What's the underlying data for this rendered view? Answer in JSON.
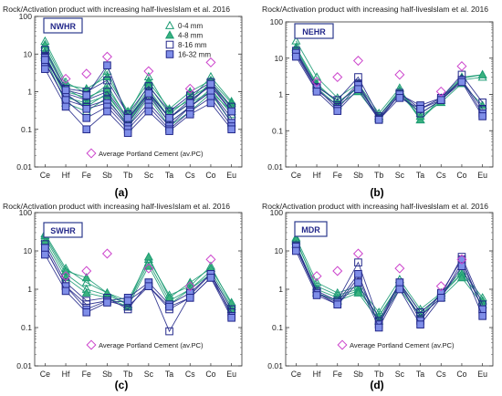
{
  "figure": {
    "panels": [
      {
        "id": "a",
        "caption": "(a)"
      },
      {
        "id": "b",
        "caption": "(b)"
      },
      {
        "id": "c",
        "caption": "(c)"
      },
      {
        "id": "d",
        "caption": "(d)"
      }
    ]
  },
  "colors": {
    "green": "#1a9a72",
    "navy": "#23288a",
    "blue_fill": "#7f8ee8",
    "green_fill": "#3bb27f",
    "pc_pink": "#cc44cc",
    "tag_border": "#2d3b8e",
    "caption": "#000000"
  },
  "chart_data": [
    {
      "panel": "a",
      "type": "line",
      "title": "Rock/Activation product with increasing half-lives",
      "source": "Islam et al. 2016",
      "tag": "NWHR",
      "categories": [
        "Ce",
        "Hf",
        "Fe",
        "Sb",
        "Tb",
        "Sc",
        "Ta",
        "Cs",
        "Co",
        "Eu"
      ],
      "yscale": "log",
      "ylim": [
        0.01,
        100
      ],
      "yticks": [
        "0.01",
        "0.1",
        "1",
        "10",
        "100"
      ],
      "legend": {
        "placement": "top-right",
        "entries": [
          {
            "label": "0-4 mm",
            "marker": "triangle-open"
          },
          {
            "label": "4-8 mm",
            "marker": "triangle-filled"
          },
          {
            "label": "8-16 mm",
            "marker": "square-open"
          },
          {
            "label": "16-32 mm",
            "marker": "square-filled"
          }
        ]
      },
      "pc_label": "Average Portland Cement (av.PC)",
      "pc_values": [
        null,
        2.2,
        3,
        8.5,
        null,
        3.5,
        null,
        1.2,
        6,
        null
      ],
      "series": [
        {
          "group": "0-4",
          "values": [
            22,
            1.8,
            0.9,
            3.5,
            0.25,
            2.5,
            0.3,
            0.6,
            2.5,
            0.55
          ]
        },
        {
          "group": "0-4",
          "values": [
            15,
            1.2,
            0.6,
            1.5,
            0.18,
            1.2,
            0.2,
            0.5,
            1.8,
            0.35
          ]
        },
        {
          "group": "0-4",
          "values": [
            10,
            0.8,
            0.4,
            0.9,
            0.15,
            0.9,
            0.15,
            0.4,
            1.2,
            0.25
          ]
        },
        {
          "group": "0-4",
          "values": [
            8,
            0.5,
            0.3,
            0.7,
            0.12,
            0.7,
            0.12,
            0.3,
            0.9,
            0.15
          ]
        },
        {
          "group": "4-8",
          "values": [
            18,
            1.5,
            1.2,
            2.5,
            0.3,
            1.8,
            0.35,
            1,
            2,
            0.5
          ]
        },
        {
          "group": "4-8",
          "values": [
            12,
            1,
            0.7,
            1.2,
            0.2,
            1.5,
            0.25,
            0.7,
            1.5,
            0.4
          ]
        },
        {
          "group": "4-8",
          "values": [
            9,
            0.7,
            0.5,
            0.8,
            0.16,
            1,
            0.2,
            0.5,
            1,
            0.3
          ]
        },
        {
          "group": "8-16",
          "values": [
            13,
            1.2,
            1,
            2,
            0.25,
            1.4,
            0.3,
            0.8,
            1.8,
            0.4
          ]
        },
        {
          "group": "8-16",
          "values": [
            9,
            0.9,
            0.6,
            1,
            0.18,
            1,
            0.2,
            0.6,
            1.4,
            0.3
          ]
        },
        {
          "group": "8-16",
          "values": [
            6,
            0.6,
            0.4,
            0.6,
            0.14,
            0.8,
            0.15,
            0.4,
            1,
            0.2
          ]
        },
        {
          "group": "16-32",
          "values": [
            8,
            0.9,
            0.35,
            0.5,
            0.12,
            0.5,
            0.12,
            0.4,
            1,
            0.15
          ]
        },
        {
          "group": "16-32",
          "values": [
            6,
            0.6,
            0.2,
            0.4,
            0.1,
            0.4,
            0.1,
            0.3,
            0.7,
            0.12
          ]
        },
        {
          "group": "16-32",
          "values": [
            4,
            0.4,
            0.1,
            0.3,
            0.08,
            0.3,
            0.09,
            0.25,
            0.5,
            0.1
          ]
        },
        {
          "group": "16-32",
          "values": [
            7,
            1.1,
            0.8,
            5,
            0.2,
            0.9,
            0.2,
            0.5,
            1.6,
            0.3
          ]
        }
      ]
    },
    {
      "panel": "b",
      "type": "line",
      "title": "Rock/Activation product with increasing half-lives",
      "source": "Islam et al. 2016",
      "tag": "NEHR",
      "categories": [
        "Ce",
        "Hf",
        "Fe",
        "Sb",
        "Tb",
        "Sc",
        "Ta",
        "Cs",
        "Co",
        "Eu"
      ],
      "yscale": "log",
      "ylim": [
        0.01,
        100
      ],
      "yticks": [
        "0.01",
        "0.1",
        "1",
        "10",
        "100"
      ],
      "pc_values": [
        null,
        2.2,
        3,
        8.5,
        null,
        3.5,
        null,
        1.2,
        6,
        null
      ],
      "series": [
        {
          "group": "0-4",
          "values": [
            30,
            3,
            0.8,
            2,
            0.3,
            1.5,
            0.2,
            0.8,
            3,
            3.5
          ]
        },
        {
          "group": "0-4",
          "values": [
            20,
            2,
            0.6,
            1.6,
            0.25,
            1.2,
            0.3,
            0.7,
            2.5,
            3
          ]
        },
        {
          "group": "4-8",
          "values": [
            18,
            1.8,
            0.6,
            1.5,
            0.25,
            1.3,
            0.2,
            0.7,
            2.8,
            3.5
          ]
        },
        {
          "group": "4-8",
          "values": [
            15,
            1.5,
            0.5,
            1.2,
            0.22,
            1,
            0.25,
            0.6,
            2,
            0.5
          ]
        },
        {
          "group": "8-16",
          "values": [
            16,
            1.6,
            0.7,
            3,
            0.25,
            1.1,
            0.4,
            0.8,
            3.5,
            0.6
          ]
        },
        {
          "group": "8-16",
          "values": [
            13,
            1.3,
            0.5,
            2,
            0.22,
            1,
            0.3,
            0.7,
            2.5,
            0.4
          ]
        },
        {
          "group": "16-32",
          "values": [
            14,
            1.5,
            0.4,
            1.8,
            0.2,
            1,
            0.5,
            0.8,
            2.5,
            0.3
          ]
        },
        {
          "group": "16-32",
          "values": [
            11,
            1.2,
            0.35,
            1.4,
            0.2,
            0.8,
            0.4,
            0.7,
            2.2,
            0.25
          ]
        }
      ]
    },
    {
      "panel": "c",
      "type": "line",
      "title": "Rock/Activation product with increasing half-lives",
      "source": "Islam et al. 2016",
      "tag": "SWHR",
      "categories": [
        "Ce",
        "Hf",
        "Fe",
        "Sb",
        "Tb",
        "Sc",
        "Ta",
        "Cs",
        "Co",
        "Eu"
      ],
      "yscale": "log",
      "ylim": [
        0.01,
        100
      ],
      "yticks": [
        "0.01",
        "0.1",
        "1",
        "10",
        "100"
      ],
      "pc_label": "Average Portland Cement (av.PC)",
      "pc_values": [
        null,
        2.2,
        3,
        8.5,
        null,
        3.5,
        null,
        1.2,
        6,
        null
      ],
      "series": [
        {
          "group": "0-4",
          "values": [
            28,
            3.5,
            1.5,
            0.8,
            0.5,
            6,
            0.7,
            1.2,
            4,
            0.4
          ]
        },
        {
          "group": "0-4",
          "values": [
            22,
            2.5,
            1,
            0.7,
            0.4,
            5,
            0.5,
            1,
            3,
            0.35
          ]
        },
        {
          "group": "4-8",
          "values": [
            25,
            3,
            2,
            0.8,
            0.4,
            7,
            0.6,
            1.5,
            3.5,
            0.45
          ]
        },
        {
          "group": "4-8",
          "values": [
            18,
            2,
            0.8,
            0.6,
            0.35,
            4,
            0.4,
            1,
            2.5,
            0.3
          ]
        },
        {
          "group": "8-16",
          "values": [
            15,
            1.5,
            0.5,
            0.6,
            0.3,
            1.5,
            0.08,
            0.7,
            2.5,
            0.3
          ]
        },
        {
          "group": "8-16",
          "values": [
            12,
            1.2,
            0.4,
            0.5,
            0.35,
            1.2,
            0.3,
            0.6,
            2,
            0.25
          ]
        },
        {
          "group": "16-32",
          "values": [
            12,
            1.2,
            0.3,
            0.5,
            0.6,
            1.5,
            0.4,
            0.8,
            2.5,
            0.2
          ]
        },
        {
          "group": "16-32",
          "values": [
            8,
            0.9,
            0.25,
            0.45,
            0.5,
            1.2,
            0.35,
            0.6,
            2,
            0.18
          ]
        }
      ]
    },
    {
      "panel": "d",
      "type": "line",
      "title": "Rock/Activation product with increasing half-lives",
      "source": "Islam et al. 2016",
      "tag": "MDR",
      "categories": [
        "Ce",
        "Hf",
        "Fe",
        "Sb",
        "Tb",
        "Sc",
        "Ta",
        "Cs",
        "Co",
        "Eu"
      ],
      "yscale": "log",
      "ylim": [
        0.01,
        100
      ],
      "yticks": [
        "0.01",
        "0.1",
        "1",
        "10",
        "100"
      ],
      "pc_label": "Average Portland Cement (av.PC)",
      "pc_values": [
        null,
        2.2,
        3,
        8.5,
        null,
        3.5,
        null,
        1.2,
        6,
        null
      ],
      "series": [
        {
          "group": "0-4",
          "values": [
            22,
            1.5,
            0.8,
            1.2,
            0.25,
            1.8,
            0.3,
            0.8,
            3,
            0.6
          ]
        },
        {
          "group": "0-4",
          "values": [
            18,
            1.2,
            0.7,
            1,
            0.2,
            1.4,
            0.25,
            0.7,
            2.5,
            0.5
          ]
        },
        {
          "group": "4-8",
          "values": [
            20,
            1,
            0.6,
            0.9,
            0.2,
            1.2,
            0.2,
            0.8,
            2.5,
            0.5
          ]
        },
        {
          "group": "4-8",
          "values": [
            15,
            0.8,
            0.5,
            0.8,
            0.15,
            1,
            0.2,
            0.6,
            2,
            0.4
          ]
        },
        {
          "group": "8-16",
          "values": [
            14,
            0.9,
            0.5,
            5,
            0.15,
            1.5,
            0.25,
            0.7,
            7,
            0.4
          ]
        },
        {
          "group": "8-16",
          "values": [
            12,
            0.8,
            0.4,
            2,
            0.12,
            1.2,
            0.2,
            0.6,
            5,
            0.3
          ]
        },
        {
          "group": "16-32",
          "values": [
            13,
            0.8,
            0.45,
            2.5,
            0.12,
            1.5,
            0.15,
            0.8,
            6,
            0.3
          ]
        },
        {
          "group": "16-32",
          "values": [
            10,
            0.7,
            0.4,
            1.5,
            0.1,
            1,
            0.12,
            0.6,
            4,
            0.2
          ]
        }
      ]
    }
  ]
}
